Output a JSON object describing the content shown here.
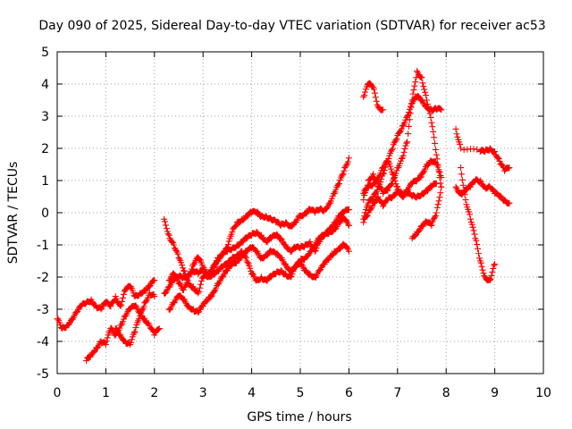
{
  "chart_data": {
    "type": "scatter",
    "title": "Day 090 of 2025, Sidereal Day-to-day VTEC variation (SDTVAR) for receiver ac53",
    "xlabel": "GPS time / hours",
    "ylabel": "SDTVAR / TECUs",
    "xlim": [
      0,
      10
    ],
    "ylim": [
      -5,
      5
    ],
    "xticks": [
      "0",
      "1",
      "2",
      "3",
      "4",
      "5",
      "6",
      "7",
      "8",
      "9",
      "10"
    ],
    "yticks": [
      "-5",
      "-4",
      "-3",
      "-2",
      "-1",
      "0",
      "1",
      "2",
      "3",
      "4",
      "5"
    ],
    "grid": true,
    "marker": "plus",
    "color": "#ff0000",
    "series": [
      {
        "x": [
          0.0,
          0.1,
          0.2,
          0.3,
          0.4,
          0.5,
          0.6,
          0.7,
          0.8,
          0.9,
          1.0,
          1.1,
          1.2,
          1.3,
          1.4,
          1.5,
          1.6,
          1.7,
          1.8,
          1.9,
          2.0
        ],
        "y": [
          -3.3,
          -3.6,
          -3.5,
          -3.3,
          -3.1,
          -2.9,
          -2.8,
          -2.7,
          -2.9,
          -3.0,
          -2.8,
          -2.9,
          -2.6,
          -2.9,
          -2.4,
          -2.3,
          -2.6,
          -2.5,
          -2.4,
          -2.3,
          -2.1
        ]
      },
      {
        "x": [
          0.6,
          0.7,
          0.8,
          0.9,
          1.0,
          1.1,
          1.2,
          1.3,
          1.4,
          1.5,
          1.6,
          1.7,
          1.8,
          1.9,
          2.0,
          2.1
        ],
        "y": [
          -4.6,
          -4.4,
          -4.2,
          -4.0,
          -4.1,
          -3.6,
          -3.8,
          -3.5,
          -3.2,
          -3.0,
          -2.9,
          -3.1,
          -3.3,
          -3.5,
          -3.8,
          -3.6
        ]
      },
      {
        "x": [
          1.2,
          1.3,
          1.4,
          1.5,
          1.6,
          1.7,
          1.8,
          1.9,
          2.0
        ],
        "y": [
          -3.6,
          -3.8,
          -4.0,
          -4.1,
          -3.7,
          -3.2,
          -2.8,
          -2.5,
          -2.6
        ]
      },
      {
        "x": [
          2.2,
          2.3,
          2.4,
          2.5,
          2.6,
          2.7,
          2.8,
          2.9,
          3.0,
          3.1,
          3.2,
          3.3,
          3.4,
          3.5,
          3.6,
          3.7,
          3.8,
          3.9,
          4.0,
          4.1,
          4.2,
          4.3,
          4.4,
          4.5,
          4.6,
          4.7,
          4.8,
          4.9,
          5.0
        ],
        "y": [
          -0.2,
          -0.7,
          -1.0,
          -1.4,
          -1.8,
          -2.2,
          -2.3,
          -2.5,
          -2.0,
          -2.0,
          -1.7,
          -1.4,
          -1.3,
          -1.1,
          -0.6,
          -0.3,
          -0.2,
          -0.1,
          0.0,
          0.0,
          -0.1,
          -0.1,
          -0.2,
          -0.3,
          -0.4,
          -0.3,
          -0.4,
          -0.3,
          -0.1
        ]
      },
      {
        "x": [
          5.0,
          5.1,
          5.2,
          5.3,
          5.4,
          5.5,
          5.6,
          5.7,
          5.8,
          5.9,
          6.0
        ],
        "y": [
          -0.1,
          0.0,
          0.1,
          0.0,
          0.1,
          0.1,
          0.3,
          0.6,
          0.9,
          1.3,
          1.7
        ]
      },
      {
        "x": [
          2.2,
          2.3,
          2.4,
          2.5,
          2.6,
          2.7,
          2.8,
          2.9,
          3.0,
          3.1,
          3.2,
          3.3,
          3.4,
          3.5,
          3.6,
          3.7,
          3.8,
          3.9,
          4.0,
          4.1,
          4.2,
          4.3,
          4.4,
          4.5,
          4.6,
          4.7,
          4.8,
          4.9,
          5.0,
          5.1,
          5.2,
          5.3,
          5.4,
          5.5,
          5.6,
          5.7,
          5.8,
          5.9,
          6.0
        ],
        "y": [
          -2.5,
          -2.3,
          -2.1,
          -2.0,
          -2.0,
          -1.9,
          -1.8,
          -1.9,
          -1.8,
          -1.9,
          -1.7,
          -1.5,
          -1.3,
          -1.2,
          -1.1,
          -1.0,
          -0.9,
          -0.8,
          -0.7,
          -0.6,
          -0.7,
          -0.9,
          -0.8,
          -0.7,
          -0.8,
          -1.0,
          -1.2,
          -1.1,
          -1.1,
          -1.0,
          -0.9,
          -1.2,
          -0.9,
          -0.7,
          -0.5,
          -0.3,
          -0.1,
          0.0,
          0.1
        ]
      },
      {
        "x": [
          2.3,
          2.4,
          2.5,
          2.6,
          2.7,
          2.8,
          2.9,
          3.0,
          3.1,
          3.2,
          3.3,
          3.4,
          3.5,
          3.6,
          3.7,
          3.8,
          3.9,
          4.0,
          4.1,
          4.2,
          4.3,
          4.4,
          4.5,
          4.6,
          4.7,
          4.8,
          4.9,
          5.0,
          5.1,
          5.2,
          5.3,
          5.4,
          5.5,
          5.6,
          5.7,
          5.8,
          5.9,
          6.0
        ],
        "y": [
          -3.0,
          -2.8,
          -2.6,
          -2.7,
          -2.9,
          -3.0,
          -3.1,
          -2.9,
          -2.7,
          -2.5,
          -2.2,
          -2.0,
          -1.8,
          -1.6,
          -1.5,
          -1.3,
          -1.2,
          -1.1,
          -1.2,
          -1.4,
          -1.3,
          -1.2,
          -1.3,
          -1.4,
          -1.6,
          -1.8,
          -1.7,
          -1.6,
          -1.8,
          -1.9,
          -2.0,
          -1.8,
          -1.6,
          -1.4,
          -1.2,
          -1.1,
          -1.0,
          -1.2
        ]
      },
      {
        "x": [
          2.3,
          2.4,
          2.5,
          2.6,
          2.7,
          2.8,
          2.9,
          3.0,
          3.1,
          3.2,
          3.3,
          3.4,
          3.5,
          3.6,
          3.7,
          3.8,
          3.9,
          4.0,
          4.1,
          4.2,
          4.3,
          4.4,
          4.5,
          4.6,
          4.7,
          4.8,
          4.9,
          5.0,
          5.1,
          5.2,
          5.3,
          5.4,
          5.5,
          5.6,
          5.7,
          5.8,
          5.9,
          6.0
        ],
        "y": [
          -2.1,
          -1.9,
          -2.2,
          -2.4,
          -2.0,
          -1.6,
          -1.4,
          -1.7,
          -2.0,
          -1.9,
          -1.8,
          -1.7,
          -1.6,
          -1.4,
          -1.3,
          -1.2,
          -1.5,
          -1.9,
          -2.1,
          -2.0,
          -2.1,
          -2.0,
          -1.9,
          -1.8,
          -1.9,
          -2.0,
          -1.7,
          -1.5,
          -1.4,
          -1.2,
          -1.0,
          -0.8,
          -0.7,
          -0.6,
          -0.5,
          -0.3,
          -0.2,
          -0.4
        ]
      },
      {
        "x": [
          6.3,
          6.4,
          6.5,
          6.6,
          6.7
        ],
        "y": [
          3.6,
          4.0,
          3.9,
          3.3,
          3.2
        ]
      },
      {
        "x": [
          6.3,
          6.4,
          6.5,
          6.6,
          6.7,
          6.8,
          6.9,
          7.0,
          7.1,
          7.2,
          7.3,
          7.4,
          7.5,
          7.6,
          7.7,
          7.8,
          7.9
        ],
        "y": [
          -0.2,
          0.3,
          0.5,
          0.8,
          1.2,
          1.6,
          2.0,
          2.4,
          2.7,
          3.0,
          3.4,
          3.6,
          3.5,
          3.3,
          3.2,
          3.2,
          3.2
        ]
      },
      {
        "x": [
          6.3,
          6.4,
          6.5,
          6.6,
          6.7,
          6.8,
          6.9,
          7.0,
          7.1,
          7.2,
          7.3,
          7.4,
          7.5,
          7.6,
          7.7,
          7.8,
          7.9
        ],
        "y": [
          0.6,
          0.8,
          0.9,
          1.1,
          1.4,
          1.6,
          1.2,
          0.8,
          0.5,
          0.7,
          0.9,
          1.0,
          1.2,
          1.5,
          1.6,
          1.5,
          1.1
        ]
      },
      {
        "x": [
          6.3,
          6.4,
          6.5,
          6.6,
          6.7,
          6.8,
          6.9,
          7.0,
          7.1,
          7.2,
          7.3,
          7.4,
          7.5,
          7.6,
          7.7,
          7.8
        ],
        "y": [
          -0.3,
          0.0,
          0.3,
          0.5,
          0.2,
          0.4,
          0.5,
          0.7,
          0.6,
          0.6,
          0.5,
          0.5,
          0.6,
          0.7,
          0.8,
          0.9
        ]
      },
      {
        "x": [
          6.3,
          6.4,
          6.5,
          6.6,
          6.7,
          6.8,
          6.9,
          7.0,
          7.1,
          7.2,
          7.3,
          7.4,
          7.5,
          7.6,
          7.7,
          7.8,
          7.9
        ],
        "y": [
          0.4,
          1.0,
          1.2,
          0.9,
          0.6,
          0.7,
          1.0,
          1.4,
          1.7,
          2.2,
          3.5,
          4.4,
          4.2,
          3.5,
          2.8,
          1.8,
          0.8
        ]
      },
      {
        "x": [
          7.3,
          7.4,
          7.5,
          7.6,
          7.7,
          7.8,
          7.9
        ],
        "y": [
          -0.8,
          -0.6,
          -0.4,
          -0.3,
          -0.4,
          0.0,
          0.8
        ]
      },
      {
        "x": [
          8.2,
          8.3,
          8.4,
          8.5,
          8.6,
          8.7,
          8.8,
          8.9,
          9.0,
          9.1,
          9.2,
          9.3
        ],
        "y": [
          0.8,
          0.6,
          0.7,
          0.8,
          1.0,
          1.0,
          0.8,
          0.8,
          0.6,
          0.5,
          0.4,
          0.3
        ]
      },
      {
        "x": [
          8.3,
          8.4,
          8.5,
          8.6,
          8.7,
          8.8,
          8.9,
          9.0
        ],
        "y": [
          1.4,
          0.4,
          -0.2,
          -0.8,
          -1.5,
          -2.0,
          -2.1,
          -1.6
        ]
      },
      {
        "x": [
          8.2,
          8.3,
          8.7,
          8.8,
          8.9,
          9.0,
          9.1,
          9.2,
          9.3
        ],
        "y": [
          2.6,
          2.0,
          1.9,
          1.9,
          2.0,
          1.9,
          1.6,
          1.3,
          1.4
        ]
      }
    ]
  }
}
